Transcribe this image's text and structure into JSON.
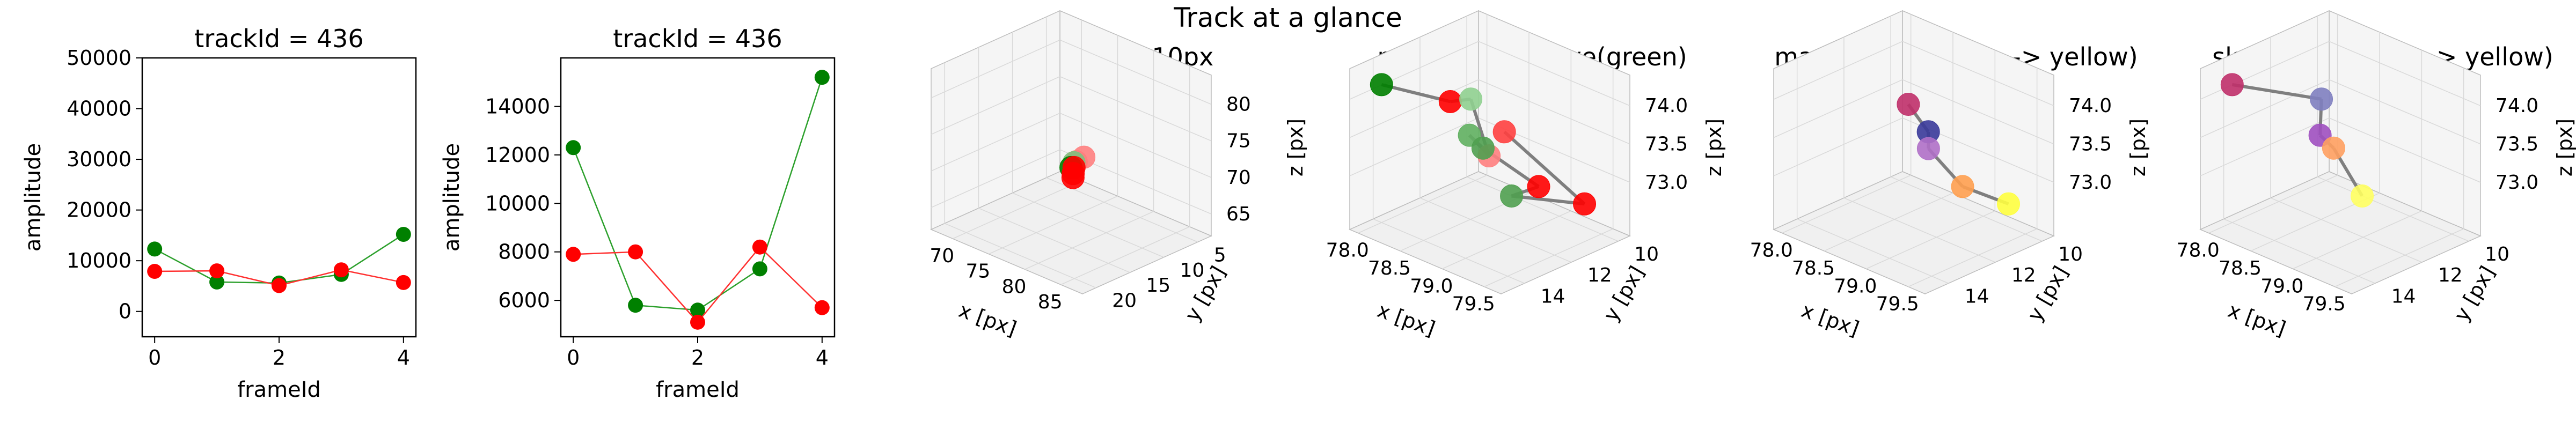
{
  "suptitle": "Track at a glance",
  "colors": {
    "green": "#008000",
    "red": "#ff0000",
    "line_green": "#2ca02c",
    "line_red": "#ff3030",
    "connector": "#7f7f7f",
    "grid": "#d9d9d9",
    "pane_edge": "#bdbdbd"
  },
  "chart_data": [
    {
      "type": "line",
      "title": "trackId = 436",
      "xlabel": "frameId",
      "ylabel": "amplitude",
      "x": [
        0,
        1,
        2,
        3,
        4
      ],
      "xlim": [
        -0.2,
        4.2
      ],
      "ylim": [
        -5000,
        50000
      ],
      "xticks": [
        "0",
        "2",
        "4"
      ],
      "yticks": [
        "0",
        "10000",
        "20000",
        "30000",
        "40000",
        "50000"
      ],
      "grid": false,
      "series": [
        {
          "color": "green",
          "values": [
            12300,
            5800,
            5600,
            7300,
            15200
          ]
        },
        {
          "color": "red",
          "values": [
            7900,
            8000,
            5100,
            8200,
            5700
          ]
        }
      ]
    },
    {
      "type": "line",
      "title": "trackId = 436",
      "xlabel": "frameId",
      "ylabel": "amplitude",
      "x": [
        0,
        1,
        2,
        3,
        4
      ],
      "xlim": [
        -0.2,
        4.2
      ],
      "ylim": [
        4500,
        16000
      ],
      "xticks": [
        "0",
        "2",
        "4"
      ],
      "yticks": [
        "6000",
        "8000",
        "10000",
        "12000",
        "14000"
      ],
      "grid": false,
      "series": [
        {
          "color": "green",
          "values": [
            12300,
            5800,
            5600,
            7300,
            15200
          ]
        },
        {
          "color": "red",
          "values": [
            7900,
            8000,
            5100,
            8200,
            5700
          ]
        }
      ]
    },
    {
      "type": "scatter",
      "title": "context +- 10px",
      "xlabel": "x [px]",
      "ylabel": "y [px]",
      "zlabel": "z [px]",
      "xlim": [
        67,
        88
      ],
      "ylim": [
        3,
        22
      ],
      "zlim": [
        62,
        84
      ],
      "xticks": [
        "70",
        "75",
        "80",
        "85"
      ],
      "yticks": [
        "5",
        "10",
        "15",
        "20"
      ],
      "zticks": [
        "65",
        "70",
        "75",
        "80"
      ],
      "points": [
        {
          "x": 78.2,
          "y": 12.5,
          "z": 72.0,
          "color": "#ff7070"
        },
        {
          "x": 78.6,
          "y": 11.8,
          "z": 72.5,
          "color": "#ff8080"
        },
        {
          "x": 77.6,
          "y": 12.2,
          "z": 71.5,
          "color": "#80c080"
        },
        {
          "x": 77.0,
          "y": 12.0,
          "z": 70.5,
          "color": "#008000"
        },
        {
          "x": 77.3,
          "y": 12.0,
          "z": 69.8,
          "color": "#ff0000"
        },
        {
          "x": 77.0,
          "y": 11.7,
          "z": 69.0,
          "color": "#ff0000"
        },
        {
          "x": 77.8,
          "y": 12.4,
          "z": 71.0,
          "color": "#ff0000"
        }
      ]
    },
    {
      "type": "scatter",
      "title": "master(red) slave(green)",
      "xlabel": "x [px]",
      "ylabel": "y [px]",
      "zlabel": "z [px]",
      "xlim": [
        77.9,
        79.7
      ],
      "ylim": [
        9.5,
        15.0
      ],
      "zlim": [
        72.3,
        74.4
      ],
      "xticks": [
        "78.0",
        "78.5",
        "79.0",
        "79.5"
      ],
      "yticks": [
        "10",
        "12",
        "14"
      ],
      "zticks": [
        "73.0",
        "73.5",
        "74.0"
      ],
      "points": [
        {
          "x": 78.0,
          "y": 14.0,
          "z": 74.1,
          "color": "#008000"
        },
        {
          "x": 78.65,
          "y": 13.4,
          "z": 74.1,
          "color": "#ff0000"
        },
        {
          "x": 78.95,
          "y": 13.6,
          "z": 74.3,
          "color": "#90d090"
        },
        {
          "x": 79.0,
          "y": 13.0,
          "z": 73.5,
          "color": "#ff8080"
        },
        {
          "x": 78.6,
          "y": 12.4,
          "z": 73.5,
          "color": "#60b060"
        },
        {
          "x": 78.65,
          "y": 12.0,
          "z": 73.3,
          "color": "#50a050"
        },
        {
          "x": 79.2,
          "y": 11.6,
          "z": 73.0,
          "color": "#ff0000"
        },
        {
          "x": 78.85,
          "y": 11.5,
          "z": 72.7,
          "color": "#50a050"
        },
        {
          "x": 79.3,
          "y": 10.0,
          "z": 72.6,
          "color": "#ff0000"
        },
        {
          "x": 79.6,
          "y": 14.5,
          "z": 74.3,
          "color": "#ff4040"
        }
      ]
    },
    {
      "type": "scatter",
      "title": "master (time: blue -> yellow)",
      "xlabel": "x [px]",
      "ylabel": "y [px]",
      "zlabel": "z [px]",
      "xlim": [
        77.9,
        79.7
      ],
      "ylim": [
        9.5,
        15.0
      ],
      "zlim": [
        72.3,
        74.4
      ],
      "xticks": [
        "78.0",
        "78.5",
        "79.0",
        "79.5"
      ],
      "yticks": [
        "10",
        "12",
        "14"
      ],
      "zticks": [
        "73.0",
        "73.5",
        "74.0"
      ],
      "points": [
        {
          "x": 79.0,
          "y": 13.2,
          "z": 74.2,
          "color": "#c0306a"
        },
        {
          "x": 79.6,
          "y": 14.5,
          "z": 74.3,
          "color": "#3a3a9a"
        },
        {
          "x": 79.1,
          "y": 12.7,
          "z": 73.6,
          "color": "#b070c8"
        },
        {
          "x": 79.2,
          "y": 11.6,
          "z": 73.0,
          "color": "#ffa050"
        },
        {
          "x": 79.3,
          "y": 10.0,
          "z": 72.6,
          "color": "#ffff40"
        }
      ]
    },
    {
      "type": "scatter",
      "title": "slave (time: blue -> yellow)",
      "xlabel": "x [px]",
      "ylabel": "y [px]",
      "zlabel": "z [px]",
      "xlim": [
        77.9,
        79.7
      ],
      "ylim": [
        9.5,
        15.0
      ],
      "zlim": [
        72.3,
        74.4
      ],
      "xticks": [
        "78.0",
        "78.5",
        "79.0",
        "79.5"
      ],
      "yticks": [
        "10",
        "12",
        "14"
      ],
      "zticks": [
        "73.0",
        "73.5",
        "74.0"
      ],
      "points": [
        {
          "x": 78.0,
          "y": 14.0,
          "z": 74.1,
          "color": "#c0306a"
        },
        {
          "x": 78.95,
          "y": 13.6,
          "z": 74.3,
          "color": "#8080c0"
        },
        {
          "x": 78.6,
          "y": 12.4,
          "z": 73.5,
          "color": "#a050c0"
        },
        {
          "x": 78.65,
          "y": 12.0,
          "z": 73.3,
          "color": "#ffa060"
        },
        {
          "x": 78.85,
          "y": 11.5,
          "z": 72.7,
          "color": "#ffff60"
        }
      ]
    }
  ]
}
